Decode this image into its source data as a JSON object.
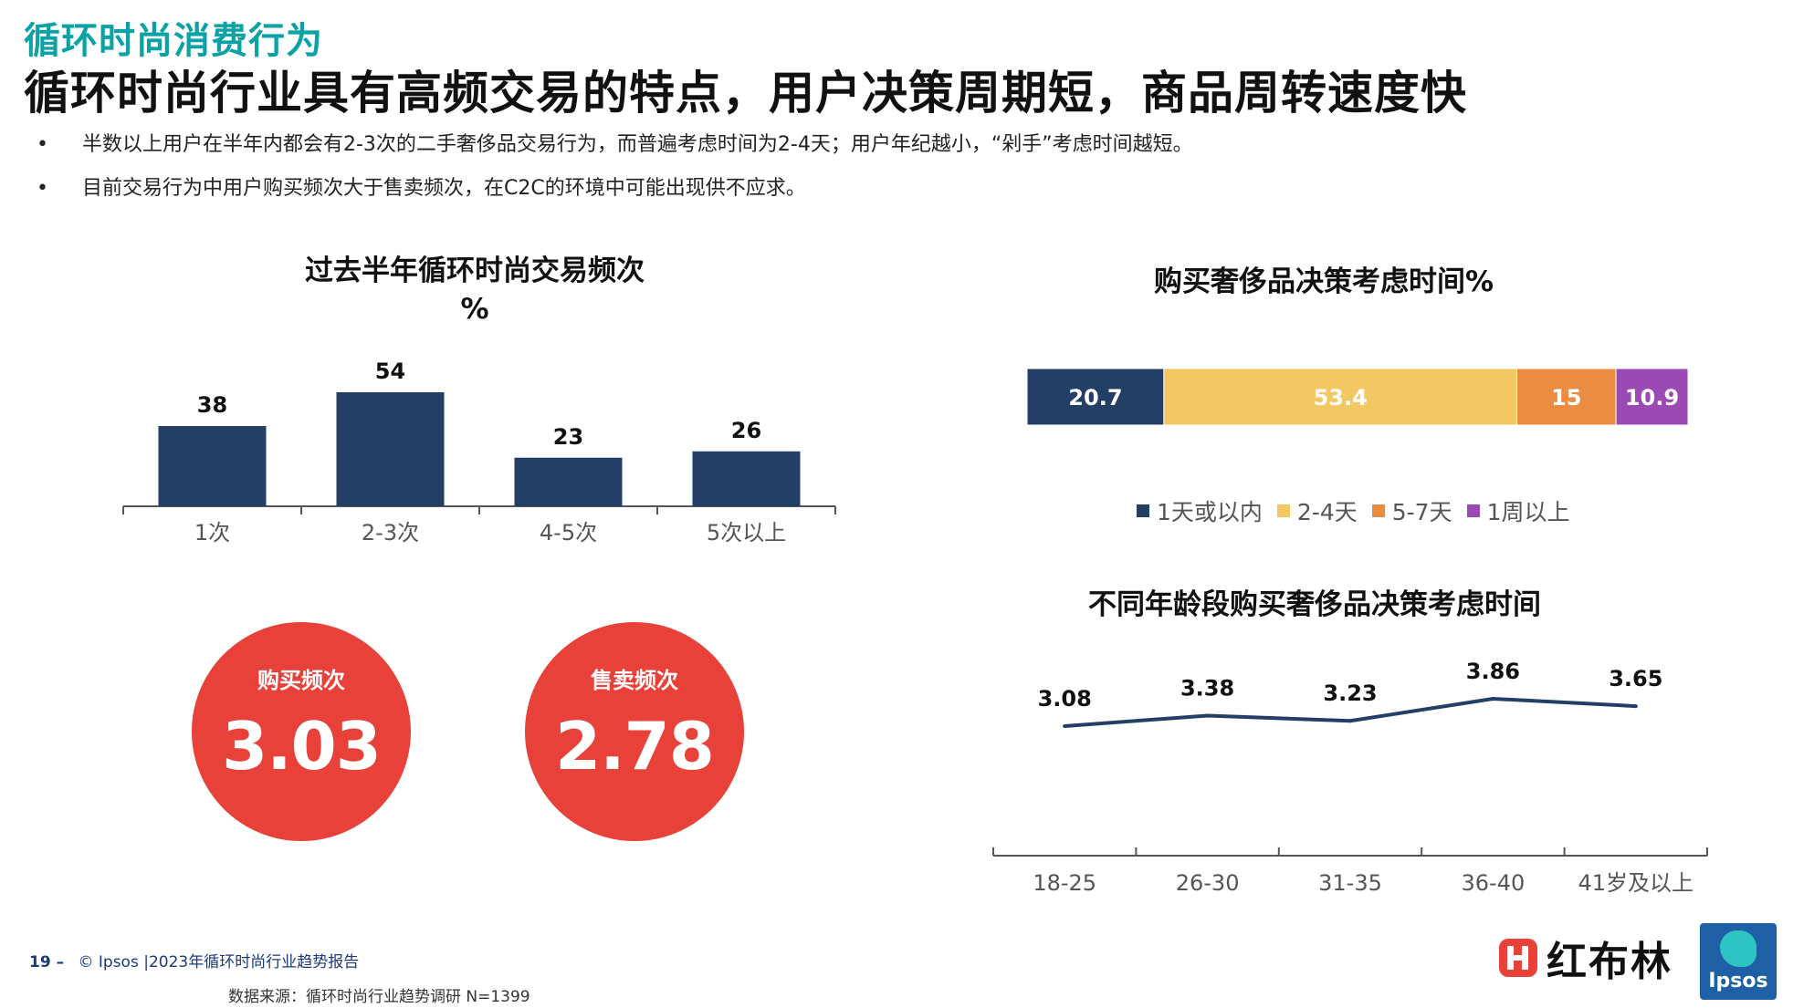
{
  "header": {
    "eyebrow": "循环时尚消费行为",
    "headline": "循环时尚行业具有高频交易的特点，用户决策周期短，商品周转速度快"
  },
  "bullets": [
    "半数以上用户在半年内都会有2-3次的二手奢侈品交易行为，而普遍考虑时间为2-4天；用户年纪越小，“剁手”考虑时间越短。",
    "目前交易行为中用户购买频次大于售卖频次，在C2C的环境中可能出现供不应求。"
  ],
  "bullet_marker": "•",
  "kpis": [
    {
      "label": "购买频次",
      "value": "3.03"
    },
    {
      "label": "售卖频次",
      "value": "2.78"
    }
  ],
  "colors": {
    "eyebrow": "#0aa2a5",
    "navy": "#233f66",
    "yellow": "#f3c862",
    "orange": "#eb8c43",
    "purple": "#9b49b5",
    "kpi_red": "#e8413a"
  },
  "chart_data": [
    {
      "type": "bar",
      "title": "过去半年循环时尚交易频次",
      "subtitle": "%",
      "categories": [
        "1次",
        "2-3次",
        "4-5次",
        "5次以上"
      ],
      "values": [
        38,
        54,
        23,
        26
      ],
      "ylim": [
        0,
        60
      ],
      "grid": false,
      "color": "#233f66"
    },
    {
      "type": "bar",
      "orientation": "horizontal-stacked-100",
      "title": "购买奢侈品决策考虑时间%",
      "series": [
        {
          "name": "1天或以内",
          "value": 20.7,
          "color": "#233f66"
        },
        {
          "name": "2-4天",
          "value": 53.4,
          "color": "#f3c862"
        },
        {
          "name": "5-7天",
          "value": 15,
          "color": "#eb8c43"
        },
        {
          "name": "1周以上",
          "value": 10.9,
          "color": "#9b49b5"
        }
      ],
      "legend": "bottom"
    },
    {
      "type": "line",
      "title": "不同年龄段购买奢侈品决策考虑时间",
      "categories": [
        "18-25",
        "26-30",
        "31-35",
        "36-40",
        "41岁及以上"
      ],
      "values": [
        3.08,
        3.38,
        3.23,
        3.86,
        3.65
      ],
      "grid": false,
      "color": "#233f66"
    }
  ],
  "footer": {
    "page": "19 –",
    "source_line": "© Ipsos |2023年循环时尚行业趋势报告",
    "data_source": "数据来源：循环时尚行业趋势调研 N=1399"
  },
  "logos": {
    "brand": "红布林",
    "partner": "Ipsos"
  }
}
